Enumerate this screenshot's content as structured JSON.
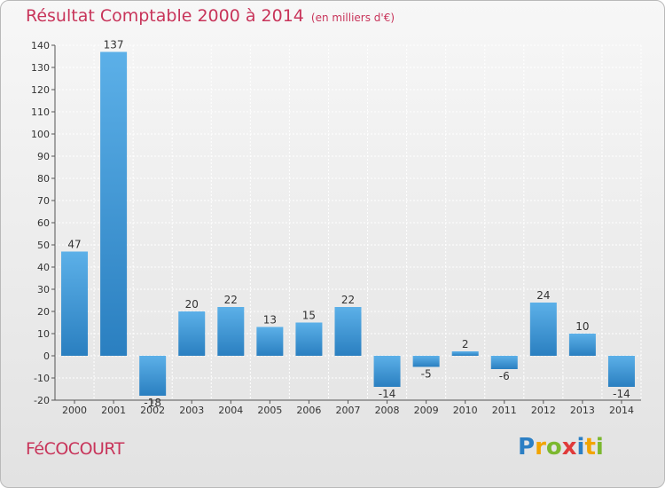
{
  "header": {
    "title": "Résultat Comptable 2000 à 2014",
    "unit": "(en milliers d'€)"
  },
  "footer": {
    "commune": "FéCOCOURT",
    "logo_letters": [
      "P",
      "r",
      "o",
      "x",
      "i",
      "t",
      "i"
    ],
    "logo_colors": [
      "#2c7fc4",
      "#f2a400",
      "#7cb82f",
      "#e03a3a",
      "#2c7fc4",
      "#f2a400",
      "#7cb82f"
    ]
  },
  "chart_data": {
    "type": "bar",
    "title": "Résultat Comptable 2000 à 2014",
    "xlabel": "",
    "ylabel": "",
    "categories": [
      "2000",
      "2001",
      "2002",
      "2003",
      "2004",
      "2005",
      "2006",
      "2007",
      "2008",
      "2009",
      "2010",
      "2011",
      "2012",
      "2013",
      "2014"
    ],
    "values": [
      47,
      137,
      -18,
      20,
      22,
      13,
      15,
      22,
      -14,
      -5,
      2,
      -6,
      24,
      10,
      -14
    ],
    "value_labels": [
      "47",
      "137",
      "-18",
      "20",
      "22",
      "13",
      "15",
      "22",
      "-14",
      "-5",
      "2",
      "-6",
      "24",
      "10",
      "-14"
    ],
    "ylim": [
      -20,
      140
    ],
    "yticks": [
      140,
      130,
      120,
      110,
      100,
      90,
      80,
      70,
      60,
      50,
      40,
      30,
      20,
      10,
      0,
      -10,
      -20
    ],
    "grid": true,
    "bar_color_light": "#5cb0e8",
    "bar_color_dark": "#2a7fc0"
  }
}
